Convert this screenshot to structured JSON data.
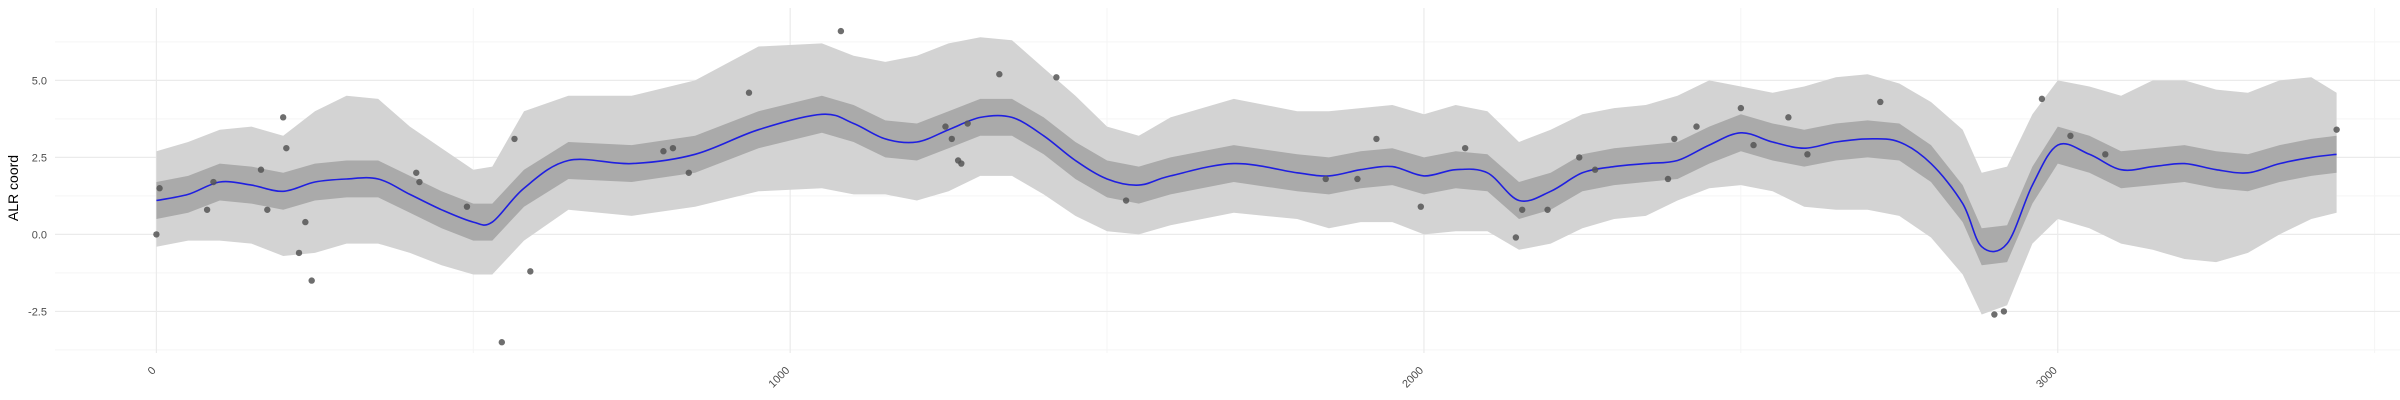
{
  "chart_data": {
    "type": "line",
    "title": "",
    "xlabel": "",
    "ylabel": "ALR coord",
    "xlim": [
      -160,
      3540
    ],
    "ylim": [
      -3.85,
      7.35
    ],
    "x_ticks": [
      0,
      1000,
      2000,
      3000
    ],
    "x_tick_labels": [
      "0",
      "1000",
      "2000",
      "3000"
    ],
    "y_ticks": [
      -2.5,
      0.0,
      2.5,
      5.0
    ],
    "y_tick_labels": [
      "-2.5",
      "0.0",
      "2.5",
      "5.0"
    ],
    "grid": true,
    "legend": "none",
    "colors": {
      "mean_line": "#1f1fe0",
      "outer_band": "#d3d3d3",
      "inner_band": "#aaaaaa",
      "points": "#555555",
      "grid_major": "#ebebeb",
      "grid_minor": "#f5f5f5"
    },
    "series": [
      {
        "name": "mean",
        "kind": "line",
        "x": [
          0,
          50,
          100,
          150,
          200,
          250,
          300,
          350,
          400,
          450,
          500,
          530,
          580,
          650,
          750,
          850,
          950,
          1050,
          1100,
          1150,
          1200,
          1250,
          1300,
          1350,
          1400,
          1450,
          1500,
          1550,
          1600,
          1700,
          1800,
          1850,
          1900,
          1950,
          2000,
          2050,
          2100,
          2150,
          2200,
          2250,
          2300,
          2350,
          2400,
          2450,
          2500,
          2550,
          2600,
          2650,
          2700,
          2750,
          2800,
          2850,
          2880,
          2920,
          2960,
          3000,
          3050,
          3100,
          3150,
          3200,
          3250,
          3300,
          3350,
          3400,
          3440
        ],
        "y": [
          1.1,
          1.3,
          1.7,
          1.6,
          1.4,
          1.7,
          1.8,
          1.8,
          1.3,
          0.8,
          0.4,
          0.4,
          1.5,
          2.4,
          2.3,
          2.6,
          3.4,
          3.9,
          3.6,
          3.1,
          3.0,
          3.4,
          3.8,
          3.8,
          3.2,
          2.4,
          1.8,
          1.6,
          1.9,
          2.3,
          2.0,
          1.9,
          2.1,
          2.2,
          1.9,
          2.1,
          2.0,
          1.1,
          1.4,
          2.0,
          2.2,
          2.3,
          2.4,
          2.9,
          3.3,
          3.0,
          2.8,
          3.0,
          3.1,
          3.0,
          2.3,
          1.0,
          -0.4,
          -0.3,
          1.6,
          2.9,
          2.6,
          2.1,
          2.2,
          2.3,
          2.1,
          2.0,
          2.3,
          2.5,
          2.6
        ]
      },
      {
        "name": "inner band",
        "kind": "band",
        "x": [
          0,
          50,
          100,
          150,
          200,
          250,
          300,
          350,
          400,
          450,
          500,
          530,
          580,
          650,
          750,
          850,
          950,
          1050,
          1100,
          1150,
          1200,
          1250,
          1300,
          1350,
          1400,
          1450,
          1500,
          1550,
          1600,
          1700,
          1800,
          1850,
          1900,
          1950,
          2000,
          2050,
          2100,
          2150,
          2200,
          2250,
          2300,
          2350,
          2400,
          2450,
          2500,
          2550,
          2600,
          2650,
          2700,
          2750,
          2800,
          2850,
          2880,
          2920,
          2960,
          3000,
          3050,
          3100,
          3150,
          3200,
          3250,
          3300,
          3350,
          3400,
          3440
        ],
        "lower": [
          0.5,
          0.7,
          1.1,
          1.0,
          0.8,
          1.1,
          1.2,
          1.2,
          0.7,
          0.2,
          -0.2,
          -0.2,
          0.9,
          1.8,
          1.7,
          2.0,
          2.8,
          3.3,
          3.0,
          2.5,
          2.4,
          2.8,
          3.2,
          3.2,
          2.6,
          1.8,
          1.2,
          1.0,
          1.3,
          1.7,
          1.4,
          1.3,
          1.5,
          1.6,
          1.3,
          1.5,
          1.4,
          0.5,
          0.8,
          1.4,
          1.6,
          1.7,
          1.8,
          2.3,
          2.7,
          2.4,
          2.2,
          2.4,
          2.5,
          2.4,
          1.7,
          0.4,
          -1.0,
          -0.9,
          1.0,
          2.3,
          2.0,
          1.5,
          1.6,
          1.7,
          1.5,
          1.4,
          1.7,
          1.9,
          2.0
        ],
        "upper": [
          1.7,
          1.9,
          2.3,
          2.2,
          2.0,
          2.3,
          2.4,
          2.4,
          1.9,
          1.4,
          1.0,
          1.0,
          2.1,
          3.0,
          2.9,
          3.2,
          4.0,
          4.5,
          4.2,
          3.7,
          3.6,
          4.0,
          4.4,
          4.4,
          3.8,
          3.0,
          2.4,
          2.2,
          2.5,
          2.9,
          2.6,
          2.5,
          2.7,
          2.8,
          2.5,
          2.7,
          2.6,
          1.7,
          2.0,
          2.6,
          2.8,
          2.9,
          3.0,
          3.5,
          3.9,
          3.6,
          3.4,
          3.6,
          3.7,
          3.6,
          2.9,
          1.6,
          0.2,
          0.3,
          2.2,
          3.5,
          3.2,
          2.7,
          2.8,
          2.9,
          2.7,
          2.6,
          2.9,
          3.1,
          3.2
        ]
      },
      {
        "name": "outer band",
        "kind": "band",
        "x": [
          0,
          50,
          100,
          150,
          200,
          250,
          300,
          350,
          400,
          450,
          500,
          530,
          580,
          650,
          750,
          850,
          950,
          1050,
          1100,
          1150,
          1200,
          1250,
          1300,
          1350,
          1400,
          1450,
          1500,
          1550,
          1600,
          1700,
          1800,
          1850,
          1900,
          1950,
          2000,
          2050,
          2100,
          2150,
          2200,
          2250,
          2300,
          2350,
          2400,
          2450,
          2500,
          2550,
          2600,
          2650,
          2700,
          2750,
          2800,
          2850,
          2880,
          2920,
          2960,
          3000,
          3050,
          3100,
          3150,
          3200,
          3250,
          3300,
          3350,
          3400,
          3440
        ],
        "lower": [
          -0.4,
          -0.2,
          -0.2,
          -0.3,
          -0.7,
          -0.6,
          -0.3,
          -0.3,
          -0.6,
          -1.0,
          -1.3,
          -1.3,
          -0.2,
          0.8,
          0.6,
          0.9,
          1.4,
          1.5,
          1.3,
          1.3,
          1.1,
          1.4,
          1.9,
          1.9,
          1.3,
          0.6,
          0.1,
          0.0,
          0.3,
          0.7,
          0.5,
          0.2,
          0.4,
          0.4,
          0.0,
          0.1,
          0.1,
          -0.5,
          -0.3,
          0.2,
          0.5,
          0.6,
          1.1,
          1.5,
          1.6,
          1.4,
          0.9,
          0.8,
          0.8,
          0.6,
          -0.1,
          -1.3,
          -2.6,
          -2.3,
          -0.3,
          0.5,
          0.2,
          -0.3,
          -0.5,
          -0.8,
          -0.9,
          -0.6,
          0.0,
          0.5,
          0.7
        ],
        "upper": [
          2.7,
          3.0,
          3.4,
          3.5,
          3.2,
          4.0,
          4.5,
          4.4,
          3.5,
          2.8,
          2.1,
          2.2,
          4.0,
          4.5,
          4.5,
          5.0,
          6.1,
          6.2,
          5.8,
          5.6,
          5.8,
          6.2,
          6.4,
          6.3,
          5.4,
          4.5,
          3.5,
          3.2,
          3.8,
          4.4,
          4.0,
          4.0,
          4.1,
          4.2,
          3.9,
          4.2,
          4.0,
          3.0,
          3.4,
          3.9,
          4.1,
          4.2,
          4.5,
          5.0,
          4.8,
          4.6,
          4.8,
          5.1,
          5.2,
          4.9,
          4.3,
          3.4,
          2.0,
          2.2,
          3.9,
          5.0,
          4.8,
          4.5,
          5.0,
          5.0,
          4.7,
          4.6,
          5.0,
          5.1,
          4.6
        ]
      },
      {
        "name": "observations",
        "kind": "scatter",
        "x": [
          0,
          5,
          80,
          90,
          165,
          175,
          200,
          205,
          225,
          235,
          245,
          410,
          415,
          490,
          545,
          565,
          590,
          800,
          815,
          840,
          935,
          1080,
          1245,
          1255,
          1265,
          1270,
          1280,
          1330,
          1420,
          1530,
          1845,
          1895,
          1925,
          1995,
          2065,
          2145,
          2155,
          2195,
          2245,
          2270,
          2385,
          2395,
          2430,
          2500,
          2520,
          2575,
          2605,
          2720,
          2900,
          2915,
          2975,
          3020,
          3075,
          3440
        ],
        "y": [
          0.0,
          1.5,
          0.8,
          1.7,
          2.1,
          0.8,
          3.8,
          2.8,
          -0.6,
          0.4,
          -1.5,
          2.0,
          1.7,
          0.9,
          -3.5,
          3.1,
          -1.2,
          2.7,
          2.8,
          2.0,
          4.6,
          6.6,
          3.5,
          3.1,
          2.4,
          2.3,
          3.6,
          5.2,
          5.1,
          1.1,
          1.8,
          1.8,
          3.1,
          0.9,
          2.8,
          -0.1,
          0.8,
          0.8,
          2.5,
          2.1,
          1.8,
          3.1,
          3.5,
          4.1,
          2.9,
          3.8,
          2.6,
          4.3,
          -2.6,
          -2.5,
          4.4,
          3.2,
          2.6,
          3.4
        ]
      }
    ]
  }
}
